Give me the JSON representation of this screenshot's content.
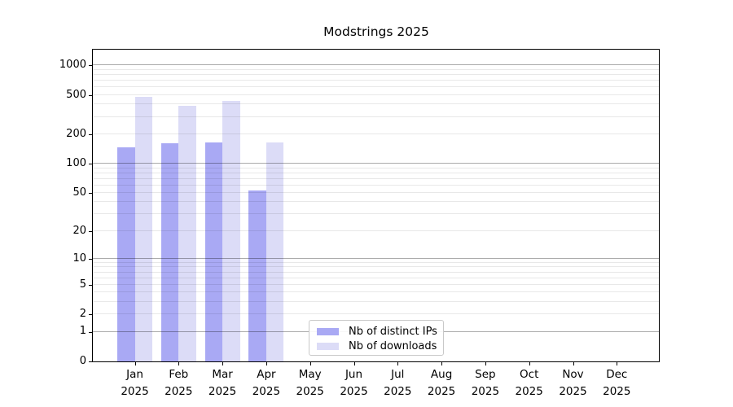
{
  "title": "Modstrings 2025",
  "chart_data": {
    "type": "bar",
    "title": "Modstrings 2025",
    "x": [
      "Jan",
      "Feb",
      "Mar",
      "Apr",
      "May",
      "Jun",
      "Jul",
      "Aug",
      "Sep",
      "Oct",
      "Nov",
      "Dec"
    ],
    "x_year_suffix": "2025",
    "series": [
      {
        "name": "Nb of distinct IPs",
        "color": "#a9a9f4",
        "values": [
          148,
          160,
          165,
          53,
          null,
          null,
          null,
          null,
          null,
          null,
          null,
          null
        ]
      },
      {
        "name": "Nb of downloads",
        "color": "#dcdcf7",
        "values": [
          475,
          390,
          435,
          166,
          null,
          null,
          null,
          null,
          null,
          null,
          null,
          null
        ]
      }
    ],
    "y_axis": {
      "scale": "log1p",
      "max": 1440,
      "ticks": [
        0,
        1,
        2,
        5,
        10,
        20,
        50,
        100,
        200,
        500,
        1000
      ],
      "major_gridlines": [
        1,
        10,
        100,
        1000
      ],
      "minor_gridlines": [
        2,
        3,
        4,
        5,
        6,
        7,
        8,
        9,
        20,
        30,
        40,
        50,
        60,
        70,
        80,
        90,
        200,
        300,
        400,
        500,
        600,
        700,
        800,
        900
      ]
    },
    "legend": {
      "position": "lower-center"
    },
    "grid": "on"
  }
}
